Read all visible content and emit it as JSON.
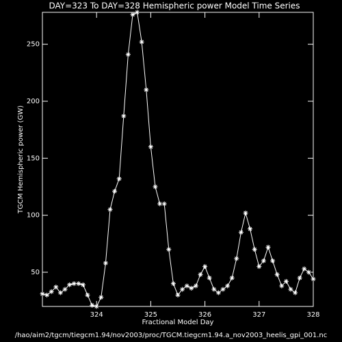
{
  "chart_data": {
    "type": "line",
    "title": "DAY=323 To DAY=328 Hemispheric power Model Time Series",
    "xlabel": "Fractional Model Day",
    "ylabel": "TGCM Hemispheric power (GW)",
    "footer": "/hao/aim2/tgcm/tiegcm1.94/nov2003/proc/TGCM.tiegcm1.94.a_nov2003_heelis_gpi_001.nc",
    "x": [
      323.0,
      323.083,
      323.167,
      323.25,
      323.333,
      323.417,
      323.5,
      323.583,
      323.667,
      323.75,
      323.833,
      323.917,
      324.0,
      324.083,
      324.167,
      324.25,
      324.333,
      324.417,
      324.5,
      324.583,
      324.667,
      324.75,
      324.833,
      324.917,
      325.0,
      325.083,
      325.167,
      325.25,
      325.333,
      325.417,
      325.5,
      325.583,
      325.667,
      325.75,
      325.833,
      325.917,
      326.0,
      326.083,
      326.167,
      326.25,
      326.333,
      326.417,
      326.5,
      326.583,
      326.667,
      326.75,
      326.833,
      326.917,
      327.0,
      327.083,
      327.167,
      327.25,
      327.333,
      327.417,
      327.5,
      327.583,
      327.667,
      327.75,
      327.833,
      327.917,
      328.0
    ],
    "series": [
      {
        "name": "Hemispheric power",
        "color": "#ffffff",
        "values": [
          31,
          30,
          33,
          37,
          32,
          35,
          39,
          40,
          40,
          39,
          30,
          21,
          20,
          28,
          58,
          105,
          121,
          132,
          187,
          241,
          276,
          278,
          252,
          210,
          160,
          125,
          110,
          110,
          70,
          40,
          30,
          35,
          38,
          36,
          38,
          48,
          55,
          45,
          35,
          32,
          35,
          38,
          45,
          62,
          85,
          102,
          88,
          70,
          55,
          60,
          72,
          60,
          48,
          38,
          42,
          35,
          32,
          45,
          53,
          50,
          44
        ]
      }
    ],
    "xlim": [
      323,
      328
    ],
    "xticks": [
      324,
      325,
      326,
      327,
      328
    ],
    "ylim": [
      20,
      278
    ],
    "yticks": [
      50,
      100,
      150,
      200,
      250
    ]
  }
}
